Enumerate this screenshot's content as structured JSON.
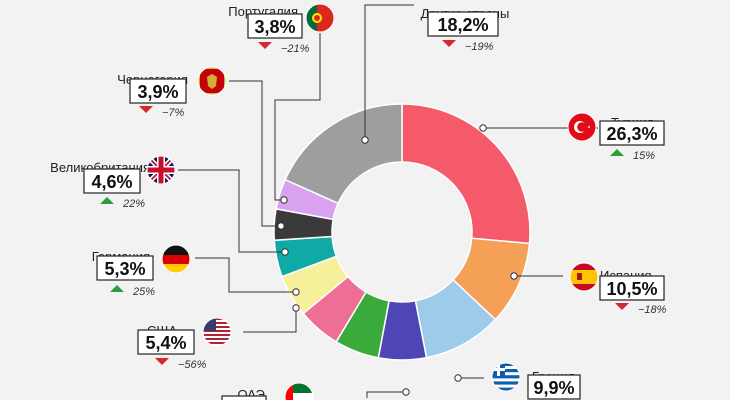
{
  "chart_data": {
    "type": "pie",
    "subtype": "donut",
    "slices": [
      {
        "label": "Турция",
        "value": 26.3,
        "value_text": "26,3%",
        "change": "15%",
        "change_dir": "up",
        "color": "#f45a6a",
        "flag": "turkey-flag-icon"
      },
      {
        "label": "Испания",
        "value": 10.5,
        "value_text": "10,5%",
        "change": "−18%",
        "change_dir": "down",
        "color": "#f4a056",
        "flag": "spain-flag-icon"
      },
      {
        "label": "Греция",
        "value": 9.9,
        "value_text": "9,9%",
        "change": "",
        "change_dir": "",
        "color": "#9ecbea",
        "flag": "greece-flag-icon"
      },
      {
        "label": "",
        "value": 6.0,
        "value_text": "",
        "change": "",
        "change_dir": "",
        "color": "#4f46b5",
        "flag": ""
      },
      {
        "label": "ОАЭ",
        "value": 5.6,
        "value_text": "",
        "change": "",
        "change_dir": "",
        "color": "#3aaa3a",
        "flag": "uae-flag-icon"
      },
      {
        "label": "США",
        "value": 5.4,
        "value_text": "5,4%",
        "change": "−56%",
        "change_dir": "down",
        "color": "#ee6f95",
        "flag": "usa-flag-icon"
      },
      {
        "label": "Германия",
        "value": 5.3,
        "value_text": "5,3%",
        "change": "25%",
        "change_dir": "up",
        "color": "#f7f09a",
        "flag": "germany-flag-icon"
      },
      {
        "label": "Великобритания",
        "value": 4.6,
        "value_text": "4,6%",
        "change": "22%",
        "change_dir": "up",
        "color": "#0fa9a6",
        "flag": "uk-flag-icon"
      },
      {
        "label": "Черногория",
        "value": 3.9,
        "value_text": "3,9%",
        "change": "−7%",
        "change_dir": "down",
        "color": "#3a3a3a",
        "flag": "montenegro-flag-icon"
      },
      {
        "label": "Португалия",
        "value": 3.8,
        "value_text": "3,8%",
        "change": "−21%",
        "change_dir": "down",
        "color": "#d9a2f0",
        "flag": "portugal-flag-icon"
      },
      {
        "label": "Другие страны",
        "value": 18.2,
        "value_text": "18,2%",
        "change": "−19%",
        "change_dir": "down",
        "color": "#9e9e9e",
        "flag": ""
      }
    ],
    "colors": {
      "up_arrow": "#2e9e3c",
      "down_arrow": "#d8262e",
      "background": "#f2f2f2"
    }
  }
}
